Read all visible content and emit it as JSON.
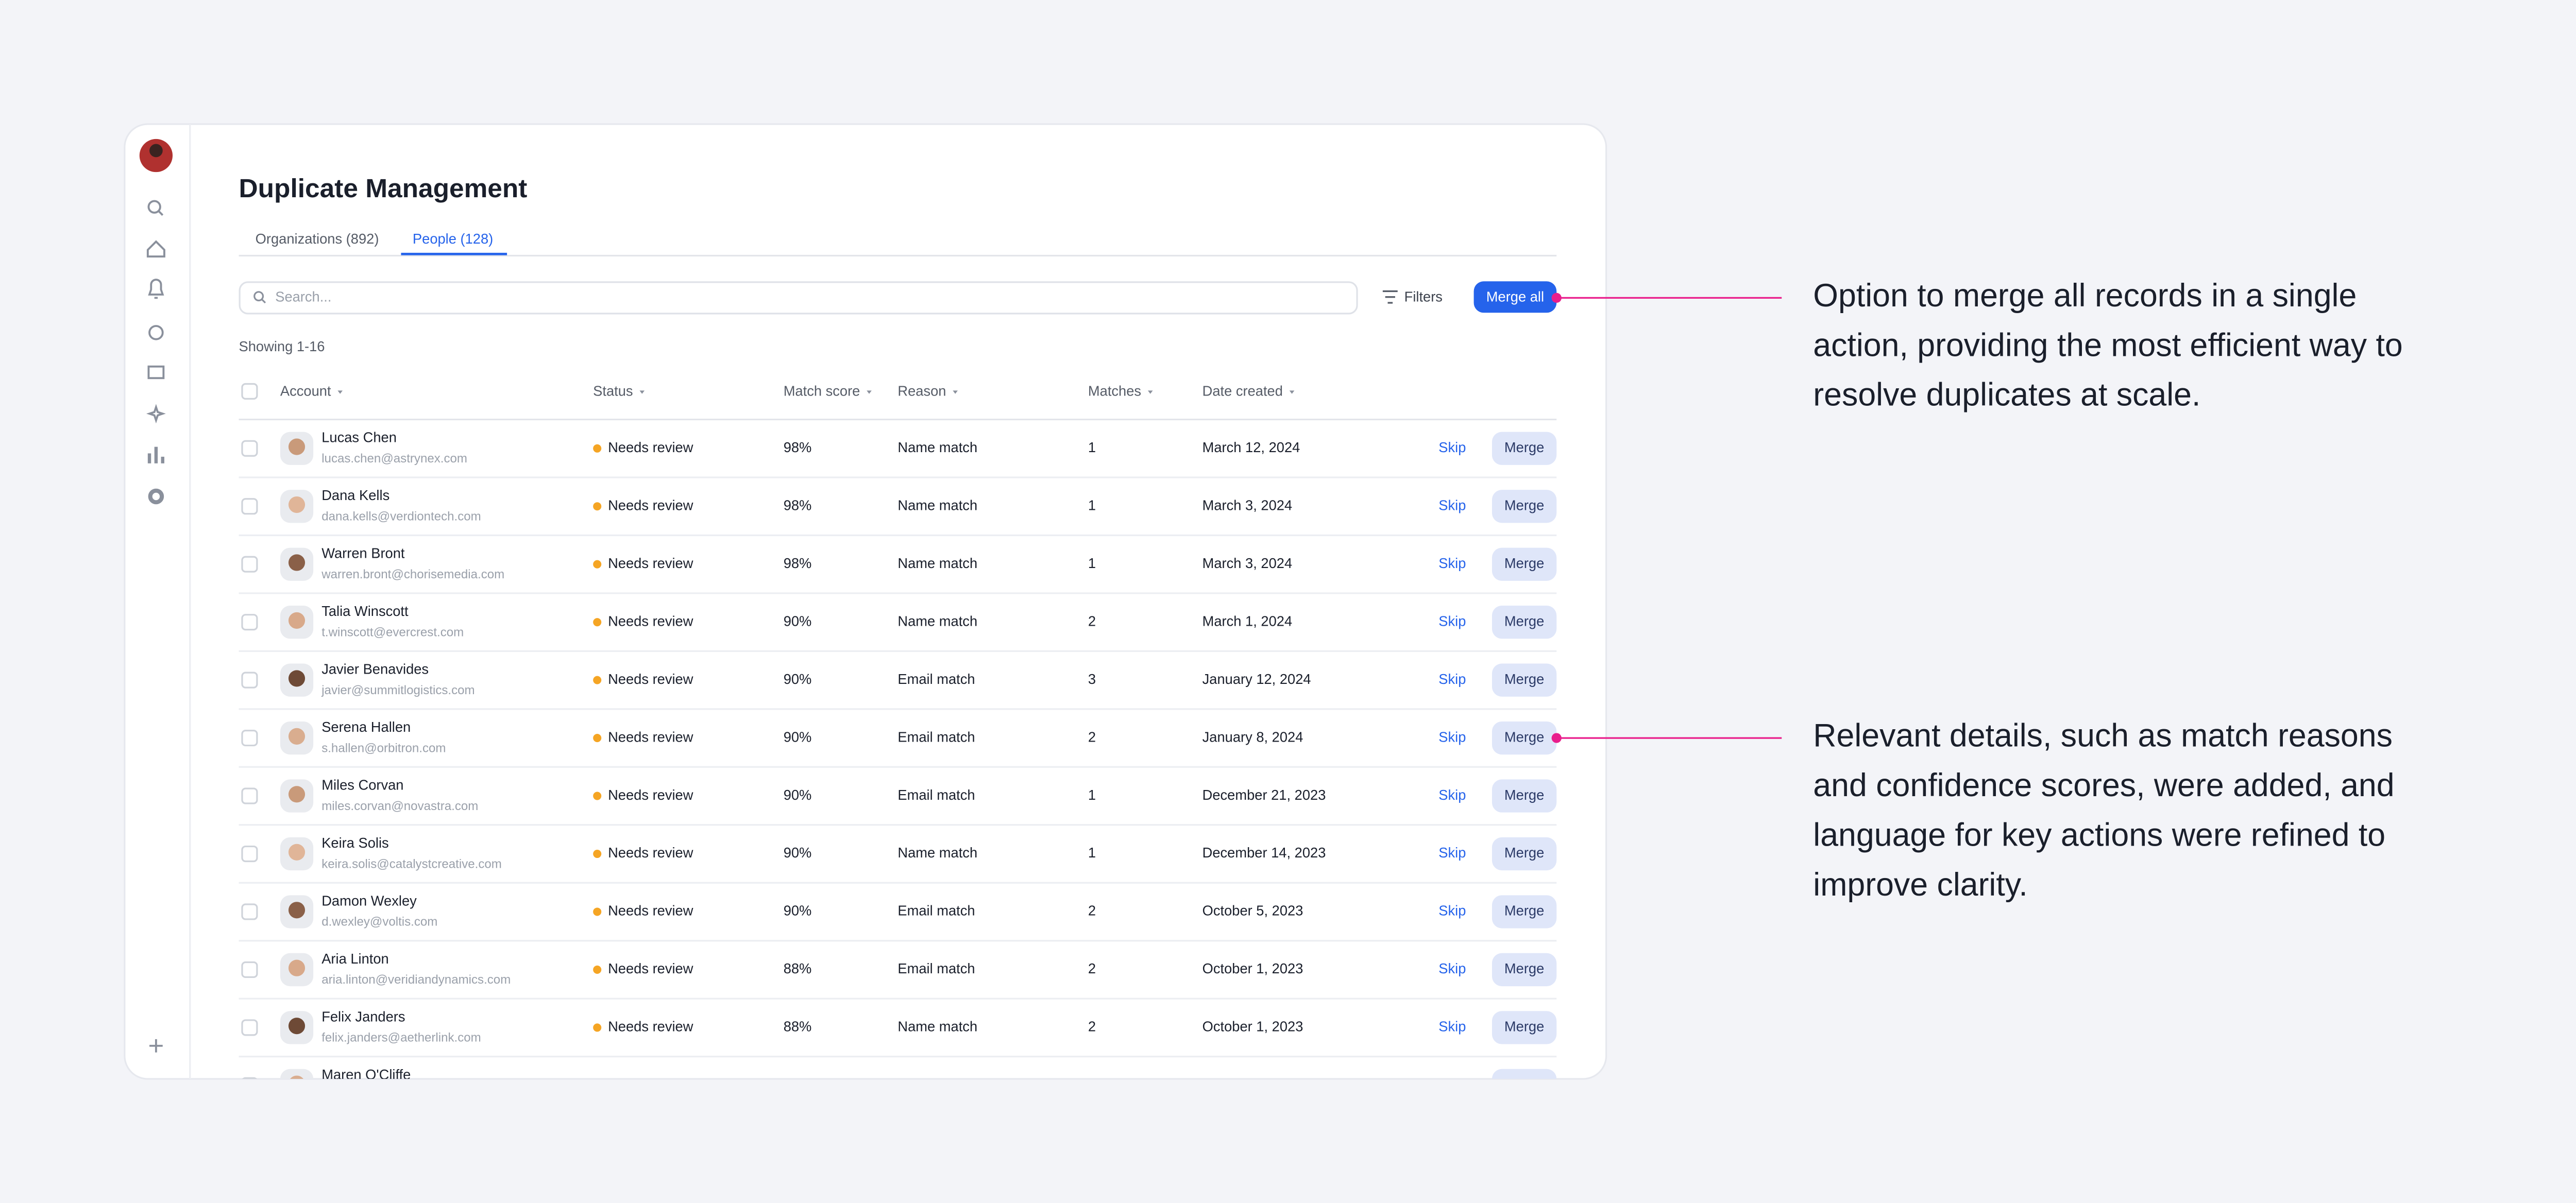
{
  "header": {
    "title": "Duplicate Management"
  },
  "tabs": [
    {
      "label": "Organizations (892)",
      "active": false
    },
    {
      "label": "People (128)",
      "active": true
    }
  ],
  "toolbar": {
    "search_placeholder": "Search...",
    "filters": "Filters",
    "merge_all": "Merge all"
  },
  "showing": "Showing 1-16",
  "table": {
    "columns": [
      "Account",
      "Status",
      "Match score",
      "Reason",
      "Matches",
      "Date created"
    ],
    "actions": {
      "skip": "Skip",
      "merge": "Merge"
    },
    "rows": [
      [
        "Lucas Chen",
        "lucas.chen@astrynex.com",
        "Needs review",
        "98%",
        "Name match",
        "1",
        "March 12, 2024"
      ],
      [
        "Dana Kells",
        "dana.kells@verdiontech.com",
        "Needs review",
        "98%",
        "Name match",
        "1",
        "March 3, 2024"
      ],
      [
        "Warren Bront",
        "warren.bront@chorisemedia.com",
        "Needs review",
        "98%",
        "Name match",
        "1",
        "March 3, 2024"
      ],
      [
        "Talia Winscott",
        "t.winscott@evercrest.com",
        "Needs review",
        "90%",
        "Name match",
        "2",
        "March 1, 2024"
      ],
      [
        "Javier Benavides",
        "javier@summitlogistics.com",
        "Needs review",
        "90%",
        "Email match",
        "3",
        "January 12, 2024"
      ],
      [
        "Serena Hallen",
        "s.hallen@orbitron.com",
        "Needs review",
        "90%",
        "Email match",
        "2",
        "January 8, 2024"
      ],
      [
        "Miles Corvan",
        "miles.corvan@novastra.com",
        "Needs review",
        "90%",
        "Email match",
        "1",
        "December 21, 2023"
      ],
      [
        "Keira Solis",
        "keira.solis@catalystcreative.com",
        "Needs review",
        "90%",
        "Name match",
        "1",
        "December 14, 2023"
      ],
      [
        "Damon Wexley",
        "d.wexley@voltis.com",
        "Needs review",
        "90%",
        "Email match",
        "2",
        "October 5, 2023"
      ],
      [
        "Aria Linton",
        "aria.linton@veridiandynamics.com",
        "Needs review",
        "88%",
        "Email match",
        "2",
        "October 1, 2023"
      ],
      [
        "Felix Janders",
        "felix.janders@aetherlink.com",
        "Needs review",
        "88%",
        "Name match",
        "2",
        "October 1, 2023"
      ],
      [
        "Maren O'Cliffe"
      ]
    ]
  },
  "annotations": [
    {
      "lines": [
        "Option to merge all records in a single",
        "action, providing the most efficient way to",
        "resolve duplicates at scale."
      ]
    },
    {
      "lines": [
        "Relevant details, such as match reasons",
        "and confidence scores, were added, and",
        "language for key actions were refined to",
        "improve clarity."
      ]
    }
  ]
}
